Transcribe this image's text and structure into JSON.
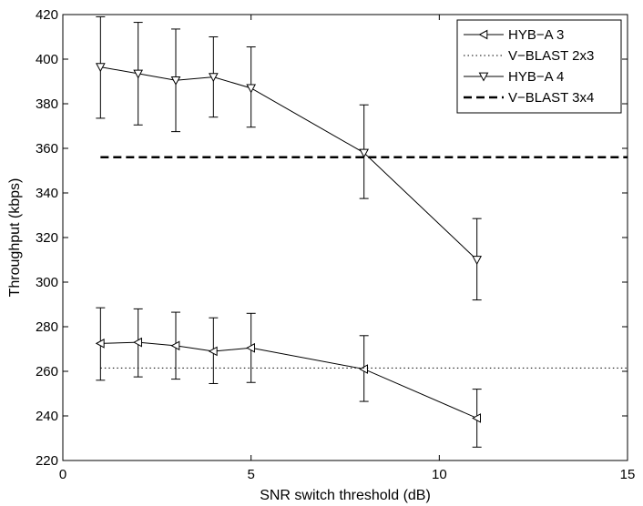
{
  "chart_data": {
    "type": "line",
    "title": "",
    "xlabel": "SNR switch threshold (dB)",
    "ylabel": "Throughput (kbps)",
    "xlim": [
      0,
      15
    ],
    "ylim": [
      220,
      420
    ],
    "xticks": [
      0,
      5,
      10,
      15
    ],
    "yticks": [
      220,
      240,
      260,
      280,
      300,
      320,
      340,
      360,
      380,
      400,
      420
    ],
    "grid": false,
    "legend_position": "top-right",
    "series": [
      {
        "name": "HYB−A 3",
        "style": "solid",
        "marker": "triangle-left",
        "x": [
          1,
          2,
          3,
          4,
          5,
          8,
          11
        ],
        "y": [
          272.5,
          273,
          271.5,
          269,
          270.5,
          261,
          239
        ],
        "err_low": [
          256,
          257.5,
          256.5,
          254.5,
          255,
          246.5,
          226
        ],
        "err_high": [
          288.5,
          288,
          286.5,
          284,
          286,
          276,
          252
        ]
      },
      {
        "name": "V−BLAST 2x3",
        "style": "dotted",
        "marker": "none",
        "x": [
          1,
          15
        ],
        "y": [
          261.5,
          261.5
        ]
      },
      {
        "name": "HYB−A 4",
        "style": "solid",
        "marker": "triangle-down",
        "x": [
          1,
          2,
          3,
          4,
          5,
          8,
          11
        ],
        "y": [
          396.5,
          393.5,
          390.5,
          392,
          387,
          358,
          310
        ],
        "err_low": [
          373.5,
          370.5,
          367.5,
          374,
          369.5,
          337.5,
          292
        ],
        "err_high": [
          419,
          416.5,
          413.5,
          410,
          405.5,
          379.5,
          328.5
        ]
      },
      {
        "name": "V−BLAST 3x4",
        "style": "dashed",
        "marker": "none",
        "x": [
          1,
          15
        ],
        "y": [
          356,
          356
        ]
      }
    ]
  }
}
